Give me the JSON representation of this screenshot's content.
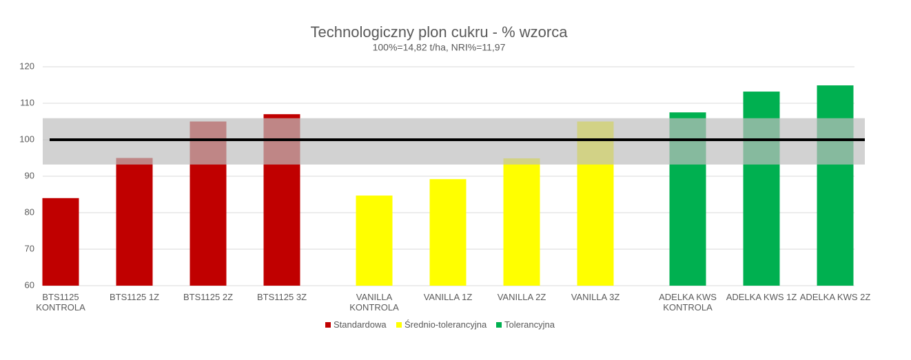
{
  "chart_data": {
    "type": "bar",
    "title": "Technologiczny plon cukru - % wzorca",
    "subtitle": "100%=14,82 t/ha, NRI%=11,97",
    "categories": [
      "BTS1125 KONTROLA",
      "BTS1125 1Z",
      "BTS1125 2Z",
      "BTS1125 3Z",
      "VANILLA KONTROLA",
      "VANILLA 1Z",
      "VANILLA 2Z",
      "VANILLA 3Z",
      "ADELKA KWS KONTROLA",
      "ADELKA KWS 1Z",
      "ADELKA KWS 2Z"
    ],
    "series": [
      {
        "name": "Standardowa",
        "color": "#c00000",
        "values": [
          84,
          95,
          105,
          107,
          null,
          null,
          null,
          null,
          null,
          null,
          null
        ]
      },
      {
        "name": "Średnio-tolerancyjna",
        "color": "#ffff00",
        "values": [
          null,
          null,
          null,
          null,
          84.7,
          89.2,
          94.9,
          105,
          null,
          null,
          null
        ]
      },
      {
        "name": "Tolerancyjna",
        "color": "#00b050",
        "values": [
          null,
          null,
          null,
          null,
          null,
          null,
          null,
          null,
          107.5,
          113.2,
          114.9
        ]
      }
    ],
    "reference_band": [
      93.2,
      105.9
    ],
    "reference_line": 100,
    "ylim": [
      60,
      120
    ],
    "yticks": [
      60,
      70,
      80,
      90,
      100,
      110,
      120
    ],
    "grid": true,
    "legend": "bottom"
  }
}
